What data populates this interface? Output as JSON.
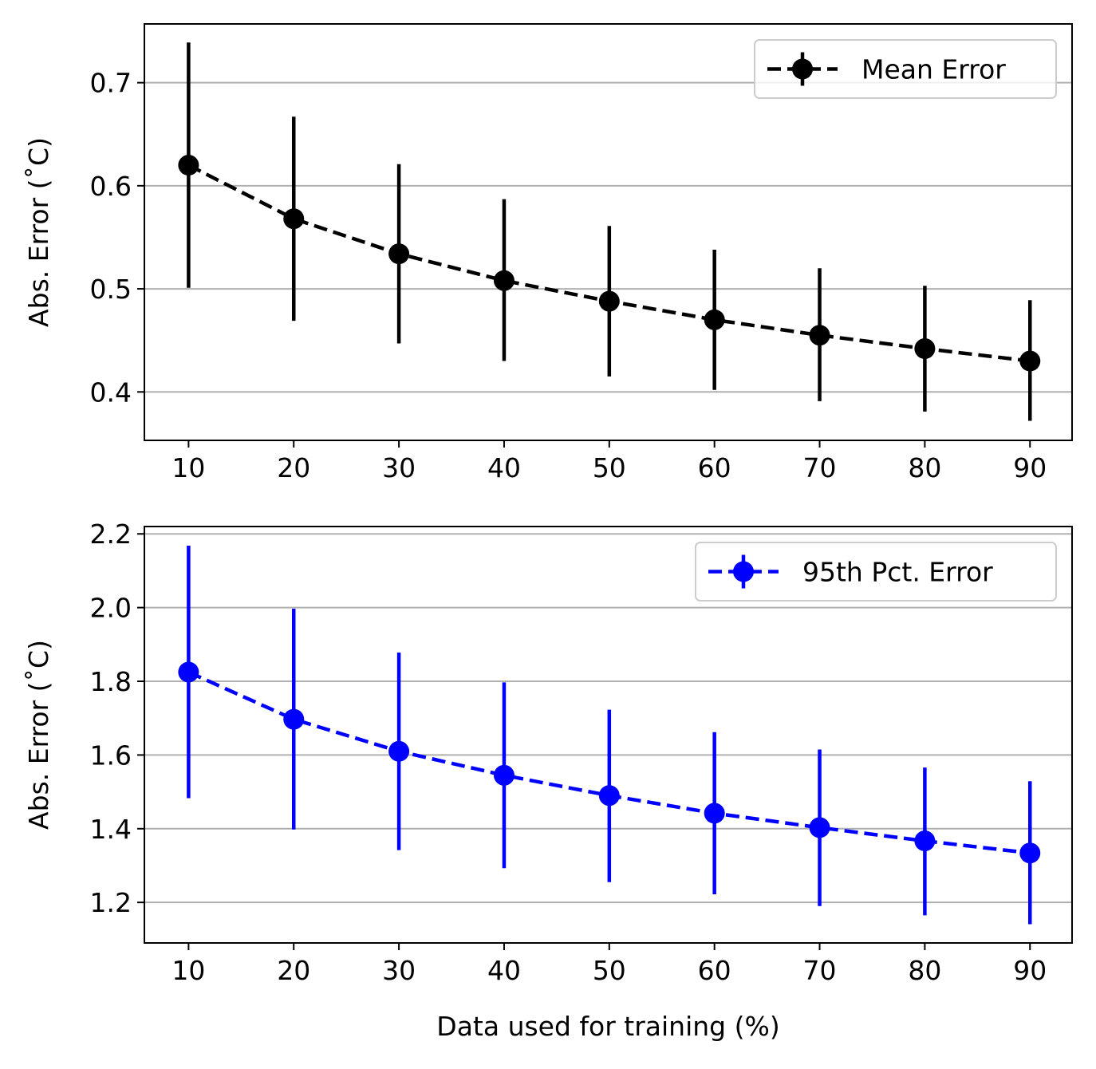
{
  "chart_data": [
    {
      "type": "line",
      "error_bars": true,
      "x": [
        10,
        20,
        30,
        40,
        50,
        60,
        70,
        80,
        90
      ],
      "series": [
        {
          "name": "Mean Error",
          "values": [
            0.62,
            0.568,
            0.534,
            0.508,
            0.488,
            0.47,
            0.455,
            0.442,
            0.43
          ],
          "err_low": [
            0.501,
            0.469,
            0.447,
            0.43,
            0.415,
            0.402,
            0.391,
            0.381,
            0.372
          ],
          "err_high": [
            0.739,
            0.667,
            0.621,
            0.587,
            0.561,
            0.538,
            0.52,
            0.503,
            0.489
          ],
          "color": "#000000",
          "linestyle": "dashed",
          "marker": "circle"
        }
      ],
      "xlabel": "",
      "ylabel": "Abs. Error (˚C)",
      "xticks": [
        "10",
        "20",
        "30",
        "40",
        "50",
        "60",
        "70",
        "80",
        "90"
      ],
      "yticks": [
        "0.4",
        "0.5",
        "0.6",
        "0.7"
      ],
      "xlim": [
        5.8,
        94.0
      ],
      "ylim": [
        0.353,
        0.757
      ],
      "grid": "y",
      "legend": "top-right"
    },
    {
      "type": "line",
      "error_bars": true,
      "x": [
        10,
        20,
        30,
        40,
        50,
        60,
        70,
        80,
        90
      ],
      "series": [
        {
          "name": "95th Pct. Error",
          "values": [
            1.825,
            1.697,
            1.61,
            1.545,
            1.49,
            1.442,
            1.403,
            1.367,
            1.334
          ],
          "err_low": [
            1.483,
            1.398,
            1.342,
            1.293,
            1.255,
            1.222,
            1.19,
            1.165,
            1.141
          ],
          "err_high": [
            2.168,
            1.997,
            1.878,
            1.797,
            1.723,
            1.662,
            1.615,
            1.566,
            1.529
          ],
          "color": "#0000ff",
          "linestyle": "dashed",
          "marker": "circle"
        }
      ],
      "xlabel": "Data used for training (%)",
      "ylabel": "Abs. Error (˚C)",
      "xticks": [
        "10",
        "20",
        "30",
        "40",
        "50",
        "60",
        "70",
        "80",
        "90"
      ],
      "yticks": [
        "1.2",
        "1.4",
        "1.6",
        "1.8",
        "2.0",
        "2.2"
      ],
      "xlim": [
        5.8,
        94.0
      ],
      "ylim": [
        1.09,
        2.22
      ],
      "grid": "y",
      "legend": "top-right"
    }
  ]
}
